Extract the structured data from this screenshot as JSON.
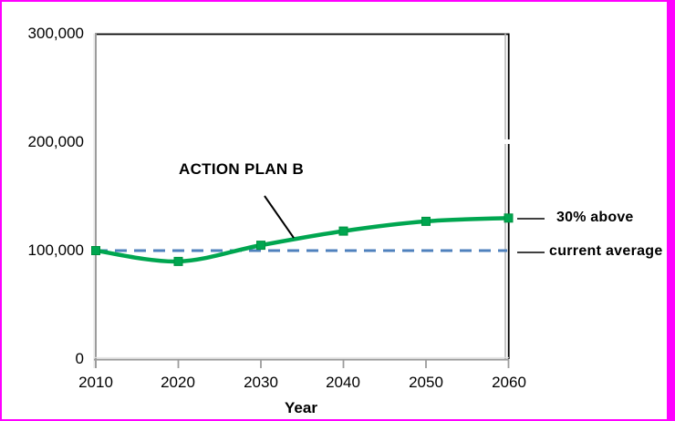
{
  "chart_data": {
    "type": "line",
    "title": "",
    "xlabel": "Year",
    "ylabel": "",
    "x": [
      2010,
      2020,
      2030,
      2040,
      2050,
      2060
    ],
    "xtick_labels": [
      "2010",
      "2020",
      "2030",
      "2040",
      "2050",
      "2060"
    ],
    "yticks": [
      0,
      100000,
      200000,
      300000
    ],
    "ytick_labels": [
      "0",
      "100,000",
      "200,000",
      "300,000"
    ],
    "ylim": [
      0,
      300000
    ],
    "grid": false,
    "legend_position": "none",
    "series": [
      {
        "name": "ACTION PLAN B",
        "style": "smooth-line",
        "marker": "square",
        "color": "#00A650",
        "marker_edge_color": "#00913F",
        "values": [
          100000,
          90000,
          105000,
          118000,
          127000,
          130000
        ]
      },
      {
        "name": "current average",
        "style": "dashed-line",
        "marker": "none",
        "color": "#4F81BD",
        "values": [
          100000,
          100000,
          100000,
          100000,
          100000,
          100000
        ]
      }
    ],
    "annotations": {
      "series_label": "ACTION PLAN B",
      "above_label": "30% above",
      "average_label": "current average"
    }
  },
  "colors": {
    "frame_border": "#FF00FF",
    "plot_border": "#000000",
    "axis": "#9C9C9C",
    "axis_light": "#E2E2E2",
    "text": "#000000",
    "background": "#FFFFFF"
  }
}
